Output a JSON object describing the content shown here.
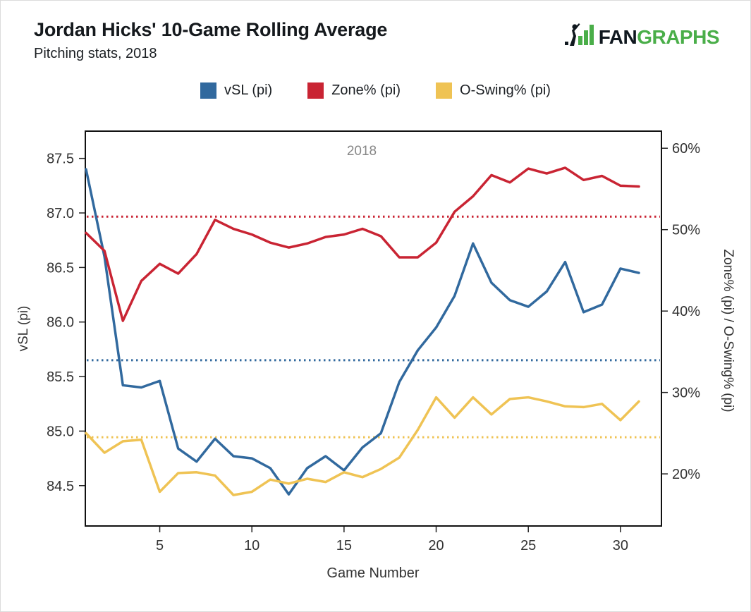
{
  "logo": {
    "fan": "FAN",
    "graphs": "GRAPHS",
    "green_color": "#4aae49",
    "dark_color": "#10181f"
  },
  "chart_data": {
    "type": "line",
    "title": "Jordan Hicks' 10-Game Rolling Average",
    "subtitle": "Pitching stats, 2018",
    "annotation": "2018",
    "annotation_color": "#878787",
    "xlabel": "Game Number",
    "grid": false,
    "legend_position": "top",
    "x_range": [
      1,
      31
    ],
    "x_ticks": [
      5,
      10,
      15,
      20,
      25,
      30
    ],
    "games": [
      1,
      2,
      3,
      4,
      5,
      6,
      7,
      8,
      9,
      10,
      11,
      12,
      13,
      14,
      15,
      16,
      17,
      18,
      19,
      20,
      21,
      22,
      23,
      24,
      25,
      26,
      27,
      28,
      29,
      30,
      31
    ],
    "left_axis": {
      "label": "vSL (pi)",
      "ticks": [
        87.5,
        87.0,
        86.5,
        86.0,
        85.5,
        85.0,
        84.5
      ],
      "range": [
        84.13,
        87.75
      ]
    },
    "right_axis": {
      "label": "Zone% (pi) / O-Swing% (pi)",
      "ticks": [
        60,
        50,
        40,
        30,
        20
      ],
      "tick_suffix": "%",
      "range": [
        13.6,
        62.1
      ]
    },
    "series": [
      {
        "name": "vSL (pi)",
        "key": "vsl",
        "axis": "left",
        "color": "#31699e",
        "season_avg": 85.65,
        "values": [
          87.4,
          86.6,
          85.42,
          85.4,
          85.46,
          84.84,
          84.72,
          84.93,
          84.77,
          84.75,
          84.66,
          84.42,
          84.66,
          84.77,
          84.64,
          84.85,
          84.98,
          85.45,
          85.74,
          85.95,
          86.24,
          86.72,
          86.36,
          86.2,
          86.14,
          86.28,
          86.55,
          86.09,
          86.16,
          86.49,
          86.45
        ]
      },
      {
        "name": "Zone% (pi)",
        "key": "zone",
        "axis": "right",
        "color": "#c92433",
        "season_avg": 51.6,
        "values": [
          49.6,
          47.4,
          38.8,
          43.7,
          45.8,
          44.6,
          47.0,
          51.2,
          50.1,
          49.4,
          48.4,
          47.8,
          48.3,
          49.1,
          49.4,
          50.1,
          49.2,
          46.6,
          46.6,
          48.4,
          52.2,
          54.1,
          56.7,
          55.8,
          57.5,
          56.9,
          57.6,
          56.1,
          56.6,
          55.4,
          55.3
        ]
      },
      {
        "name": "O-Swing% (pi)",
        "key": "oswing",
        "axis": "right",
        "color": "#efc354",
        "season_avg": 24.5,
        "values": [
          25.0,
          22.6,
          24.0,
          24.2,
          17.8,
          20.1,
          20.2,
          19.8,
          17.4,
          17.8,
          19.3,
          18.8,
          19.4,
          19.0,
          20.2,
          19.6,
          20.6,
          22.0,
          25.4,
          29.4,
          26.9,
          29.4,
          27.3,
          29.2,
          29.4,
          28.9,
          28.3,
          28.2,
          28.6,
          26.6,
          28.9
        ]
      }
    ]
  }
}
